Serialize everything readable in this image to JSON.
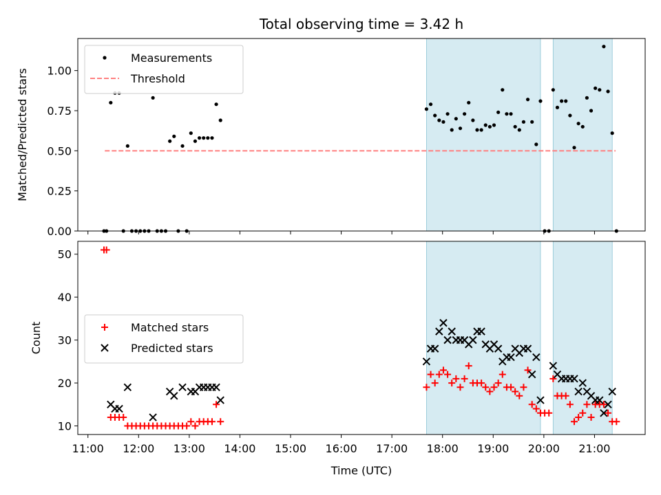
{
  "chart_data": {
    "type": "scatter",
    "title": "Total observing time = 3.42 h",
    "shaded_intervals": [
      [
        "17:41",
        "19:56"
      ],
      [
        "20:11",
        "21:21"
      ]
    ],
    "shade_color": "#add8e6",
    "xlabel": "Time (UTC)",
    "xticks": [
      "11:00",
      "12:00",
      "13:00",
      "14:00",
      "15:00",
      "16:00",
      "17:00",
      "18:00",
      "19:00",
      "20:00",
      "21:00"
    ],
    "panels": [
      {
        "ylabel": "Matched/Predicted stars",
        "ylim": [
          0,
          1.2
        ],
        "yticks": [
          "0.00",
          "0.25",
          "0.50",
          "0.75",
          "1.00"
        ],
        "legend": {
          "placement": "upper left",
          "entries": [
            "Measurements",
            "Threshold"
          ]
        },
        "threshold": {
          "name": "Threshold",
          "value": 0.5,
          "x_range": [
            "11:20",
            "21:25"
          ],
          "color": "#ff7f7f"
        },
        "series": [
          {
            "name": "Measurements",
            "marker": "dot",
            "color": "#000000",
            "points": [
              [
                "11:19",
                0.0
              ],
              [
                "11:22",
                0.0
              ],
              [
                "11:27",
                0.8
              ],
              [
                "11:32",
                0.86
              ],
              [
                "11:37",
                0.86
              ],
              [
                "11:42",
                0.0
              ],
              [
                "11:47",
                0.53
              ],
              [
                "11:52",
                0.0
              ],
              [
                "11:57",
                0.0
              ],
              [
                "12:02",
                0.0
              ],
              [
                "12:07",
                0.0
              ],
              [
                "12:12",
                0.0
              ],
              [
                "12:17",
                0.83
              ],
              [
                "12:22",
                0.0
              ],
              [
                "12:27",
                0.0
              ],
              [
                "12:32",
                0.0
              ],
              [
                "12:37",
                0.56
              ],
              [
                "12:42",
                0.59
              ],
              [
                "12:47",
                0.0
              ],
              [
                "12:52",
                0.53
              ],
              [
                "12:57",
                0.0
              ],
              [
                "13:02",
                0.61
              ],
              [
                "13:07",
                0.56
              ],
              [
                "13:12",
                0.58
              ],
              [
                "13:17",
                0.58
              ],
              [
                "13:22",
                0.58
              ],
              [
                "13:27",
                0.58
              ],
              [
                "13:32",
                0.79
              ],
              [
                "13:37",
                0.69
              ],
              [
                "17:41",
                0.76
              ],
              [
                "17:46",
                0.79
              ],
              [
                "17:51",
                0.72
              ],
              [
                "17:56",
                0.69
              ],
              [
                "18:01",
                0.68
              ],
              [
                "18:06",
                0.73
              ],
              [
                "18:11",
                0.63
              ],
              [
                "18:16",
                0.7
              ],
              [
                "18:21",
                0.64
              ],
              [
                "18:26",
                0.73
              ],
              [
                "18:31",
                0.8
              ],
              [
                "18:36",
                0.69
              ],
              [
                "18:41",
                0.63
              ],
              [
                "18:46",
                0.63
              ],
              [
                "18:51",
                0.66
              ],
              [
                "18:56",
                0.65
              ],
              [
                "19:01",
                0.66
              ],
              [
                "19:06",
                0.74
              ],
              [
                "19:11",
                0.88
              ],
              [
                "19:16",
                0.73
              ],
              [
                "19:21",
                0.73
              ],
              [
                "19:26",
                0.65
              ],
              [
                "19:31",
                0.63
              ],
              [
                "19:36",
                0.68
              ],
              [
                "19:41",
                0.82
              ],
              [
                "19:46",
                0.68
              ],
              [
                "19:51",
                0.54
              ],
              [
                "19:56",
                0.81
              ],
              [
                "20:01",
                0.0
              ],
              [
                "20:06",
                0.0
              ],
              [
                "20:11",
                0.88
              ],
              [
                "20:16",
                0.77
              ],
              [
                "20:21",
                0.81
              ],
              [
                "20:26",
                0.81
              ],
              [
                "20:31",
                0.72
              ],
              [
                "20:36",
                0.52
              ],
              [
                "20:41",
                0.67
              ],
              [
                "20:46",
                0.65
              ],
              [
                "20:51",
                0.83
              ],
              [
                "20:56",
                0.75
              ],
              [
                "21:01",
                0.89
              ],
              [
                "21:06",
                0.88
              ],
              [
                "21:11",
                1.15
              ],
              [
                "21:16",
                0.87
              ],
              [
                "21:21",
                0.61
              ],
              [
                "21:26",
                0.0
              ]
            ]
          }
        ]
      },
      {
        "ylabel": "Count",
        "ylim": [
          8,
          53
        ],
        "yticks": [
          "10",
          "20",
          "30",
          "40",
          "50"
        ],
        "legend": {
          "placement": "center left",
          "entries": [
            "Matched stars",
            "Predicted stars"
          ]
        },
        "series": [
          {
            "name": "Matched stars",
            "marker": "plus",
            "color": "#ff0000",
            "points": [
              [
                "11:19",
                51
              ],
              [
                "11:22",
                51
              ],
              [
                "11:27",
                12
              ],
              [
                "11:32",
                12
              ],
              [
                "11:37",
                12
              ],
              [
                "11:42",
                12
              ],
              [
                "11:47",
                10
              ],
              [
                "11:52",
                10
              ],
              [
                "11:57",
                10
              ],
              [
                "12:02",
                10
              ],
              [
                "12:07",
                10
              ],
              [
                "12:12",
                10
              ],
              [
                "12:17",
                10
              ],
              [
                "12:22",
                10
              ],
              [
                "12:27",
                10
              ],
              [
                "12:32",
                10
              ],
              [
                "12:37",
                10
              ],
              [
                "12:42",
                10
              ],
              [
                "12:47",
                10
              ],
              [
                "12:52",
                10
              ],
              [
                "12:57",
                10
              ],
              [
                "13:02",
                11
              ],
              [
                "13:07",
                10
              ],
              [
                "13:12",
                11
              ],
              [
                "13:17",
                11
              ],
              [
                "13:22",
                11
              ],
              [
                "13:27",
                11
              ],
              [
                "13:32",
                15
              ],
              [
                "13:37",
                11
              ],
              [
                "17:41",
                19
              ],
              [
                "17:46",
                22
              ],
              [
                "17:51",
                20
              ],
              [
                "17:56",
                22
              ],
              [
                "18:01",
                23
              ],
              [
                "18:06",
                22
              ],
              [
                "18:11",
                20
              ],
              [
                "18:16",
                21
              ],
              [
                "18:21",
                19
              ],
              [
                "18:26",
                21
              ],
              [
                "18:31",
                24
              ],
              [
                "18:36",
                20
              ],
              [
                "18:41",
                20
              ],
              [
                "18:46",
                20
              ],
              [
                "18:51",
                19
              ],
              [
                "18:56",
                18
              ],
              [
                "19:01",
                19
              ],
              [
                "19:06",
                20
              ],
              [
                "19:11",
                22
              ],
              [
                "19:16",
                19
              ],
              [
                "19:21",
                19
              ],
              [
                "19:26",
                18
              ],
              [
                "19:31",
                17
              ],
              [
                "19:36",
                19
              ],
              [
                "19:41",
                23
              ],
              [
                "19:46",
                15
              ],
              [
                "19:51",
                14
              ],
              [
                "19:56",
                13
              ],
              [
                "20:01",
                13
              ],
              [
                "20:06",
                13
              ],
              [
                "20:11",
                21
              ],
              [
                "20:16",
                17
              ],
              [
                "20:21",
                17
              ],
              [
                "20:26",
                17
              ],
              [
                "20:31",
                15
              ],
              [
                "20:36",
                11
              ],
              [
                "20:41",
                12
              ],
              [
                "20:46",
                13
              ],
              [
                "20:51",
                15
              ],
              [
                "20:56",
                12
              ],
              [
                "21:01",
                15
              ],
              [
                "21:06",
                15
              ],
              [
                "21:11",
                15
              ],
              [
                "21:16",
                13
              ],
              [
                "21:21",
                11
              ],
              [
                "21:26",
                11
              ]
            ]
          },
          {
            "name": "Predicted stars",
            "marker": "x",
            "color": "#000000",
            "points": [
              [
                "11:27",
                15
              ],
              [
                "11:32",
                14
              ],
              [
                "11:37",
                14
              ],
              [
                "11:47",
                19
              ],
              [
                "12:17",
                12
              ],
              [
                "12:37",
                18
              ],
              [
                "12:42",
                17
              ],
              [
                "12:52",
                19
              ],
              [
                "13:02",
                18
              ],
              [
                "13:07",
                18
              ],
              [
                "13:12",
                19
              ],
              [
                "13:17",
                19
              ],
              [
                "13:22",
                19
              ],
              [
                "13:27",
                19
              ],
              [
                "13:32",
                19
              ],
              [
                "13:37",
                16
              ],
              [
                "17:41",
                25
              ],
              [
                "17:46",
                28
              ],
              [
                "17:51",
                28
              ],
              [
                "17:56",
                32
              ],
              [
                "18:01",
                34
              ],
              [
                "18:06",
                30
              ],
              [
                "18:11",
                32
              ],
              [
                "18:16",
                30
              ],
              [
                "18:21",
                30
              ],
              [
                "18:26",
                30
              ],
              [
                "18:31",
                29
              ],
              [
                "18:36",
                30
              ],
              [
                "18:41",
                32
              ],
              [
                "18:46",
                32
              ],
              [
                "18:51",
                29
              ],
              [
                "18:56",
                28
              ],
              [
                "19:01",
                29
              ],
              [
                "19:06",
                28
              ],
              [
                "19:11",
                25
              ],
              [
                "19:16",
                26
              ],
              [
                "19:21",
                26
              ],
              [
                "19:26",
                28
              ],
              [
                "19:31",
                27
              ],
              [
                "19:36",
                28
              ],
              [
                "19:41",
                28
              ],
              [
                "19:46",
                22
              ],
              [
                "19:51",
                26
              ],
              [
                "19:56",
                16
              ],
              [
                "20:11",
                24
              ],
              [
                "20:16",
                22
              ],
              [
                "20:21",
                21
              ],
              [
                "20:26",
                21
              ],
              [
                "20:31",
                21
              ],
              [
                "20:36",
                21
              ],
              [
                "20:41",
                18
              ],
              [
                "20:46",
                20
              ],
              [
                "20:51",
                18
              ],
              [
                "20:56",
                17
              ],
              [
                "21:01",
                16
              ],
              [
                "21:06",
                16
              ],
              [
                "21:11",
                13
              ],
              [
                "21:16",
                15
              ],
              [
                "21:21",
                18
              ]
            ]
          }
        ]
      }
    ]
  }
}
